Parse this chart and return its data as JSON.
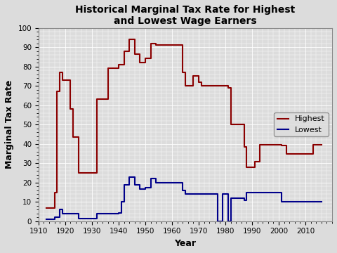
{
  "title": "Historical Marginal Tax Rate for Highest\nand Lowest Wage Earners",
  "xlabel": "Year",
  "ylabel": "Marginal Tax Rate",
  "xlim": [
    1910,
    2020
  ],
  "ylim": [
    0,
    100
  ],
  "highest_years": [
    1913,
    1916,
    1917,
    1918,
    1919,
    1922,
    1923,
    1925,
    1932,
    1936,
    1940,
    1941,
    1942,
    1944,
    1946,
    1948,
    1950,
    1952,
    1954,
    1963,
    1964,
    1965,
    1968,
    1970,
    1971,
    1976,
    1981,
    1982,
    1987,
    1988,
    1991,
    1993,
    2001,
    2003,
    2013,
    2016
  ],
  "highest_rates": [
    7,
    15,
    67,
    77,
    73,
    58,
    43.5,
    25,
    63,
    79,
    81.1,
    81,
    88,
    94,
    86.45,
    82.13,
    84.36,
    92,
    91,
    91,
    77,
    70,
    75.25,
    71.75,
    70,
    70,
    69.125,
    50,
    38.5,
    28,
    31,
    39.6,
    39.1,
    35,
    39.6,
    39.6
  ],
  "lowest_years": [
    1913,
    1916,
    1917,
    1918,
    1919,
    1922,
    1925,
    1932,
    1936,
    1940,
    1941,
    1942,
    1944,
    1946,
    1948,
    1950,
    1952,
    1954,
    1963,
    1964,
    1965,
    1968,
    1971,
    1976,
    1977,
    1979,
    1981,
    1982,
    1987,
    1988,
    1991,
    1993,
    2001,
    2003,
    2013,
    2016
  ],
  "lowest_rates": [
    1,
    2,
    2,
    6,
    4,
    4,
    1.5,
    4,
    4,
    4.4,
    10,
    19,
    23,
    19,
    16.6,
    17.4,
    22.2,
    20,
    20,
    16,
    14,
    14,
    14,
    14,
    0,
    14,
    0,
    12,
    11,
    15,
    15,
    15,
    10,
    10,
    10,
    10
  ],
  "highest_color": "#8B0000",
  "lowest_color": "#00008B",
  "bg_color": "#DCDCDC",
  "grid_color": "#FFFFFF",
  "xticks": [
    1910,
    1920,
    1930,
    1940,
    1950,
    1960,
    1970,
    1980,
    1990,
    2000,
    2010
  ],
  "yticks": [
    0,
    10,
    20,
    30,
    40,
    50,
    60,
    70,
    80,
    90,
    100
  ],
  "title_fontsize": 10,
  "label_fontsize": 9,
  "tick_fontsize": 7.5,
  "legend_loc": "center right",
  "legend_fontsize": 8
}
